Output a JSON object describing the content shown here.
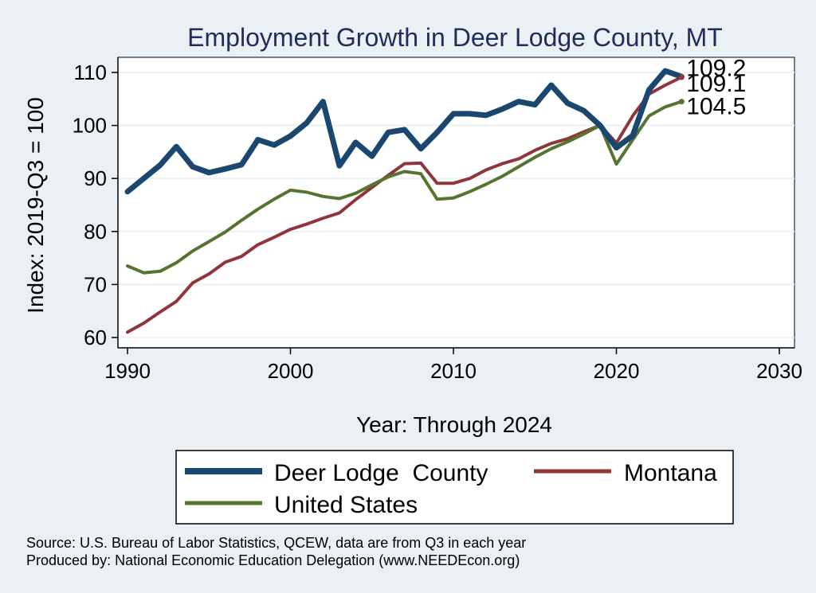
{
  "chart_data": {
    "type": "line",
    "title": "Employment Growth in Deer Lodge County, MT",
    "xlabel": "Year: Through 2024",
    "ylabel": "Index: 2019-Q3 = 100",
    "xlim": [
      1990,
      2030
    ],
    "ylim": [
      60,
      110
    ],
    "x_ticks": [
      1990,
      2000,
      2010,
      2020,
      2030
    ],
    "y_ticks": [
      60,
      70,
      80,
      90,
      100,
      110
    ],
    "grid": true,
    "legend_position": "bottom",
    "x": [
      1990,
      1991,
      1992,
      1993,
      1994,
      1995,
      1996,
      1997,
      1998,
      1999,
      2000,
      2001,
      2002,
      2003,
      2004,
      2005,
      2006,
      2007,
      2008,
      2009,
      2010,
      2011,
      2012,
      2013,
      2014,
      2015,
      2016,
      2017,
      2018,
      2019,
      2020,
      2021,
      2022,
      2023,
      2024
    ],
    "series": [
      {
        "name": "Deer Lodge  County",
        "color": "#1a476f",
        "width": 7,
        "values": [
          87.5,
          90,
          92.5,
          96,
          92.2,
          91.1,
          91.8,
          92.6,
          97.3,
          96.3,
          98,
          100.5,
          104.5,
          92.4,
          96.8,
          94.2,
          98.7,
          99.2,
          95.6,
          98.7,
          102.2,
          102.2,
          101.9,
          103.1,
          104.5,
          103.9,
          107.6,
          104.2,
          102.8,
          100,
          95.8,
          98.1,
          106.7,
          110.3,
          109.2
        ],
        "end_label": "109.2"
      },
      {
        "name": "Montana",
        "color": "#90353b",
        "width": 4,
        "values": [
          61,
          62.7,
          64.8,
          66.8,
          70.3,
          72,
          74.2,
          75.3,
          77.5,
          78.9,
          80.4,
          81.4,
          82.5,
          83.5,
          86,
          88.3,
          90.6,
          92.8,
          92.9,
          89.1,
          89.1,
          90,
          91.6,
          92.8,
          93.7,
          95.3,
          96.6,
          97.5,
          98.8,
          100,
          96.7,
          101.8,
          105.9,
          107.6,
          109.1
        ],
        "end_label": "109.1"
      },
      {
        "name": "United States",
        "color": "#55752f",
        "width": 4,
        "values": [
          73.5,
          72.2,
          72.5,
          74.1,
          76.3,
          78.1,
          79.9,
          82.1,
          84.2,
          86.1,
          87.8,
          87.4,
          86.6,
          86.2,
          87.2,
          88.8,
          90.3,
          91.3,
          90.9,
          86.1,
          86.3,
          87.5,
          88.9,
          90.4,
          92.2,
          94,
          95.6,
          96.9,
          98.4,
          100,
          92.7,
          97.3,
          101.8,
          103.5,
          104.5
        ],
        "end_label": "104.5"
      }
    ]
  },
  "footer": {
    "source": "Source: U.S. Bureau of Labor Statistics, QCEW, data are from Q3 in each year",
    "produced_by": "Produced by: National Economic Education Delegation (www.NEEDEcon.org)"
  }
}
